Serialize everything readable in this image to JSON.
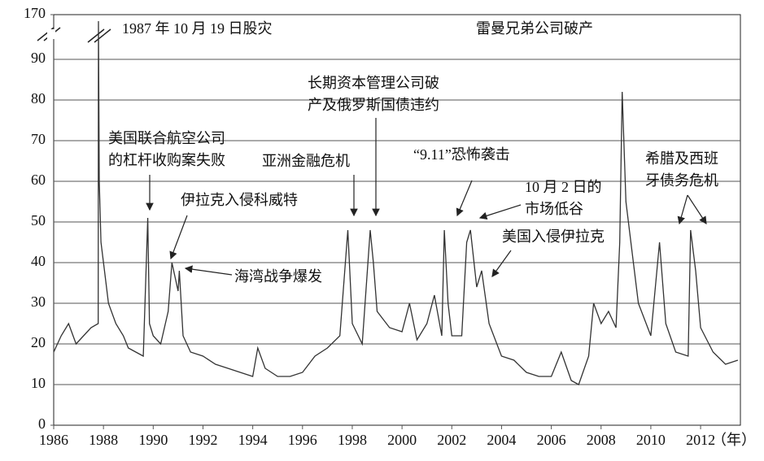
{
  "chart_data": {
    "type": "line",
    "x_unit_label": "（年）",
    "xlim": [
      1986,
      2013.6
    ],
    "xticks": [
      1986,
      1988,
      1990,
      1992,
      1994,
      1996,
      1998,
      2000,
      2002,
      2004,
      2006,
      2008,
      2010,
      2012
    ],
    "ylim": [
      0,
      170
    ],
    "ybreak": [
      95,
      170
    ],
    "yticks": [
      0,
      10,
      20,
      30,
      40,
      50,
      60,
      70,
      80,
      90,
      170
    ],
    "grid": true,
    "series": [
      {
        "color": "#333333",
        "x": [
          1986.0,
          1986.3,
          1986.6,
          1986.9,
          1987.2,
          1987.5,
          1987.79,
          1987.8,
          1987.83,
          1987.9,
          1988.0,
          1988.2,
          1988.5,
          1988.8,
          1989.0,
          1989.3,
          1989.6,
          1989.78,
          1989.85,
          1990.0,
          1990.3,
          1990.6,
          1990.75,
          1991.0,
          1991.05,
          1991.2,
          1991.5,
          1992.0,
          1992.5,
          1993.0,
          1993.5,
          1994.0,
          1994.2,
          1994.5,
          1995.0,
          1995.5,
          1996.0,
          1996.5,
          1997.0,
          1997.5,
          1997.82,
          1998.0,
          1998.4,
          1998.72,
          1998.85,
          1999.0,
          1999.5,
          2000.0,
          2000.3,
          2000.6,
          2001.0,
          2001.3,
          2001.6,
          2001.7,
          2001.85,
          2002.0,
          2002.4,
          2002.6,
          2002.75,
          2003.0,
          2003.2,
          2003.5,
          2004.0,
          2004.5,
          2005.0,
          2005.5,
          2006.0,
          2006.4,
          2006.8,
          2007.1,
          2007.5,
          2007.7,
          2008.0,
          2008.3,
          2008.6,
          2008.75,
          2008.85,
          2009.0,
          2009.2,
          2009.5,
          2010.0,
          2010.35,
          2010.6,
          2011.0,
          2011.5,
          2011.6,
          2011.8,
          2012.0,
          2012.5,
          2013.0,
          2013.5
        ],
        "values": [
          18,
          22,
          25,
          20,
          22,
          24,
          25,
          150,
          60,
          45,
          40,
          30,
          25,
          22,
          19,
          18,
          17,
          51,
          25,
          22,
          20,
          28,
          40,
          33,
          38,
          22,
          18,
          17,
          15,
          14,
          13,
          12,
          19,
          14,
          12,
          12,
          13,
          17,
          19,
          22,
          48,
          25,
          20,
          48,
          40,
          28,
          24,
          23,
          30,
          21,
          25,
          32,
          22,
          48,
          30,
          22,
          22,
          45,
          48,
          34,
          38,
          25,
          17,
          16,
          13,
          12,
          12,
          18,
          11,
          10,
          17,
          30,
          25,
          28,
          24,
          45,
          82,
          55,
          45,
          30,
          22,
          45,
          25,
          18,
          17,
          48,
          38,
          24,
          18,
          15,
          16
        ]
      }
    ],
    "annotations": [
      {
        "text": [
          "1987 年 10 月 19 日股灾"
        ]
      },
      {
        "text": [
          "雷曼兄弟公司破产"
        ]
      },
      {
        "text": [
          "长期资本管理公司破",
          "产及俄罗斯国债违约"
        ]
      },
      {
        "text": [
          "美国联合航空公司",
          "的杠杆收购案失败"
        ]
      },
      {
        "text": [
          "亚洲金融危机"
        ]
      },
      {
        "text": [
          "“9.11”恐怖袭击"
        ]
      },
      {
        "text": [
          "10 月 2 日的",
          "市场低谷"
        ]
      },
      {
        "text": [
          "伊拉克入侵科威特"
        ]
      },
      {
        "text": [
          "希腊及西班",
          "牙债务危机"
        ]
      },
      {
        "text": [
          "美国入侵伊拉克"
        ]
      },
      {
        "text": [
          "海湾战争爆发"
        ]
      }
    ]
  }
}
